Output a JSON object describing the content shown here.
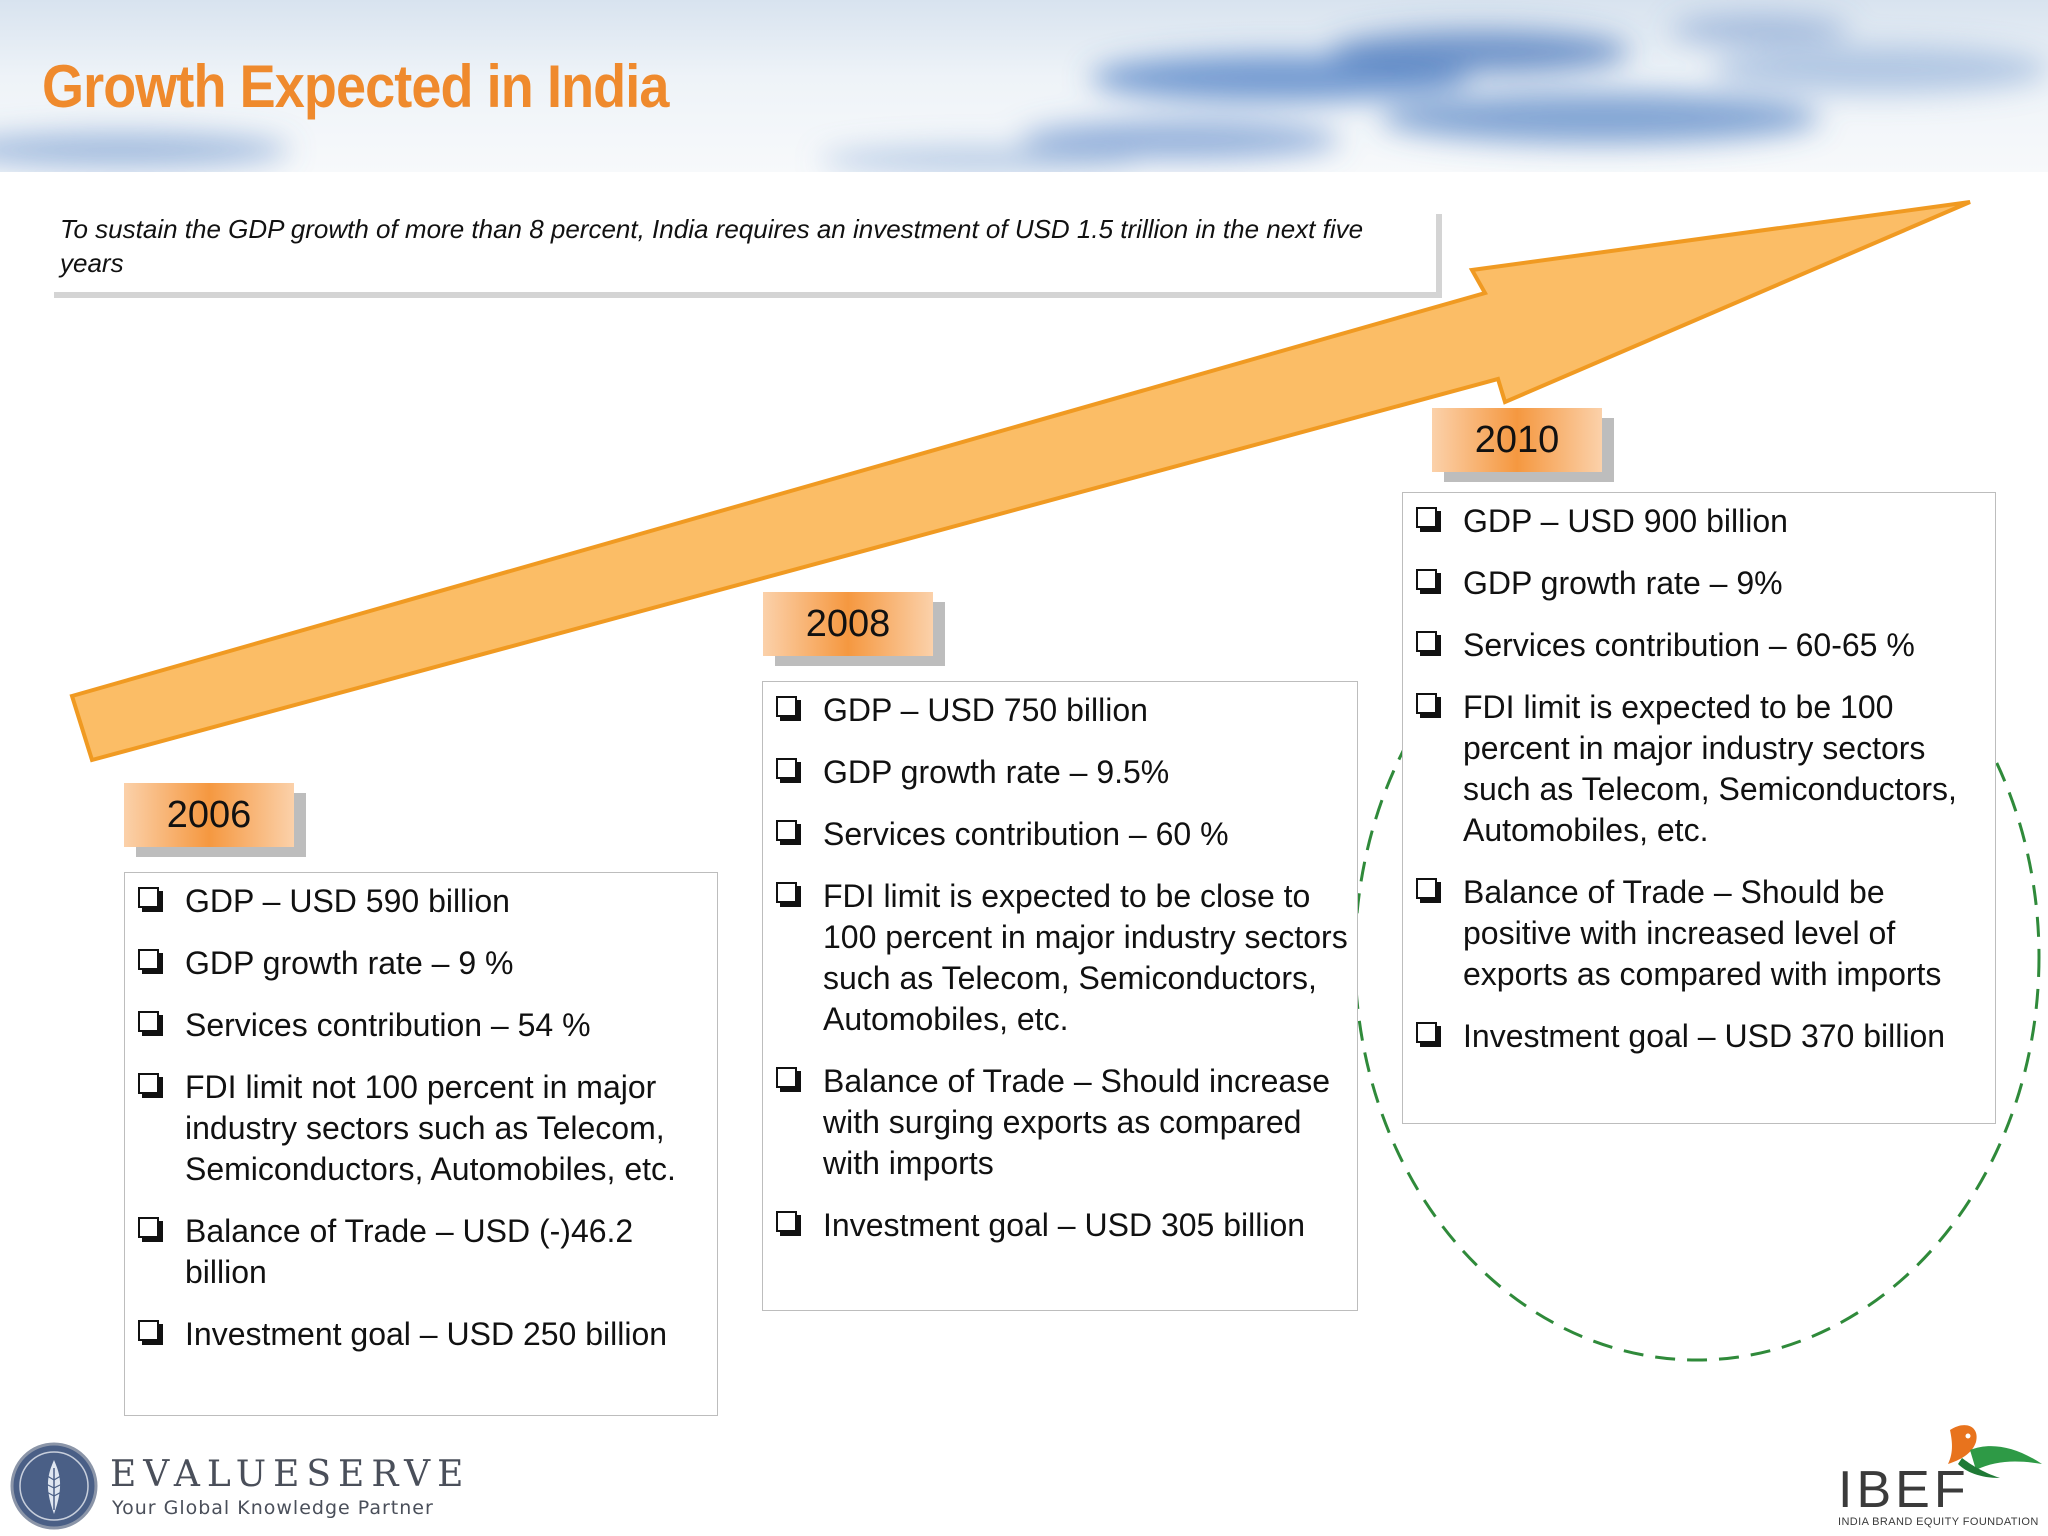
{
  "slide": {
    "title": "Growth Expected in India",
    "intro": "To sustain the GDP growth of more than 8 percent, India requires an investment of USD 1.5 trillion in the next five years"
  },
  "colors": {
    "title": "#ef8a2d",
    "arrow_fill": "#fbbd66",
    "arrow_stroke": "#f09a22",
    "highlight_ellipse": "#2f8a3a"
  },
  "timeline": [
    {
      "year": "2006",
      "items": [
        "GDP – USD 590 billion",
        "GDP growth rate – 9 %",
        "Services contribution – 54 %",
        "FDI limit not 100 percent in major industry sectors such as Telecom, Semiconductors, Automobiles, etc.",
        "Balance of Trade – USD (-)46.2 billion",
        "Investment goal – USD 250 billion"
      ]
    },
    {
      "year": "2008",
      "items": [
        "GDP – USD 750 billion",
        "GDP growth rate – 9.5%",
        "Services contribution – 60 %",
        "FDI limit is expected to be close to 100 percent in major industry sectors such as Telecom, Semiconductors, Automobiles, etc.",
        "Balance of Trade – Should increase with surging exports as compared with imports",
        "Investment goal – USD 305 billion"
      ]
    },
    {
      "year": "2010",
      "items": [
        "GDP – USD 900 billion",
        "GDP growth rate – 9%",
        "Services contribution – 60-65 %",
        "FDI limit is expected to be 100 percent in major industry sectors such as Telecom, Semiconductors, Automobiles, etc.",
        "Balance of Trade – Should be positive with increased level of exports as compared with imports",
        "Investment goal – USD 370 billion"
      ]
    }
  ],
  "logos": {
    "left": {
      "name": "EVALUESERVE",
      "tagline": "Your Global Knowledge Partner",
      "icon": "palm-leaf-emblem-icon"
    },
    "right": {
      "name": "IBEF",
      "subtitle": "INDIA BRAND EQUITY FOUNDATION",
      "icon": "bird-icon"
    }
  }
}
